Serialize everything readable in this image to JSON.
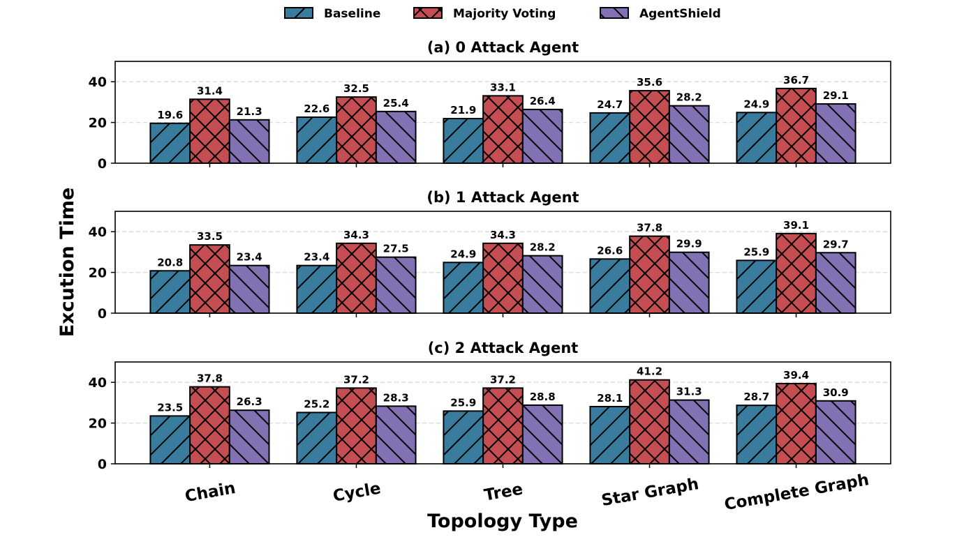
{
  "chart_data": {
    "type": "bar",
    "xlabel": "Topology Type",
    "ylabel": "Excution Time",
    "categories": [
      "Chain",
      "Cycle",
      "Tree",
      "Star Graph",
      "Complete Graph"
    ],
    "ylim": [
      0,
      50
    ],
    "yticks": [
      0,
      20,
      40
    ],
    "grid": "horizontal dashed",
    "legend": {
      "placement": "top-center",
      "entries": [
        "Baseline",
        "Majority Voting",
        "AgentShield"
      ]
    },
    "colors": {
      "Baseline": "#3a7c9e",
      "Majority Voting": "#c44e52",
      "AgentShield": "#8272b4"
    },
    "hatches": {
      "Baseline": "/",
      "Majority Voting": "x",
      "AgentShield": "\\"
    },
    "panels": [
      {
        "title": "(a) 0 Attack Agent",
        "series": [
          {
            "name": "Baseline",
            "values": [
              19.6,
              22.6,
              21.9,
              24.7,
              24.9
            ]
          },
          {
            "name": "Majority Voting",
            "values": [
              31.4,
              32.5,
              33.1,
              35.6,
              36.7
            ]
          },
          {
            "name": "AgentShield",
            "values": [
              21.3,
              25.4,
              26.4,
              28.2,
              29.1
            ]
          }
        ]
      },
      {
        "title": "(b) 1 Attack Agent",
        "series": [
          {
            "name": "Baseline",
            "values": [
              20.8,
              23.4,
              24.9,
              26.6,
              25.9
            ]
          },
          {
            "name": "Majority Voting",
            "values": [
              33.5,
              34.3,
              34.3,
              37.8,
              39.1
            ]
          },
          {
            "name": "AgentShield",
            "values": [
              23.4,
              27.5,
              28.2,
              29.9,
              29.7
            ]
          }
        ]
      },
      {
        "title": "(c) 2 Attack Agent",
        "series": [
          {
            "name": "Baseline",
            "values": [
              23.5,
              25.2,
              25.9,
              28.1,
              28.7
            ]
          },
          {
            "name": "Majority Voting",
            "values": [
              37.8,
              37.2,
              37.2,
              41.2,
              39.4
            ]
          },
          {
            "name": "AgentShield",
            "values": [
              26.3,
              28.3,
              28.8,
              31.3,
              30.9
            ]
          }
        ]
      }
    ]
  }
}
